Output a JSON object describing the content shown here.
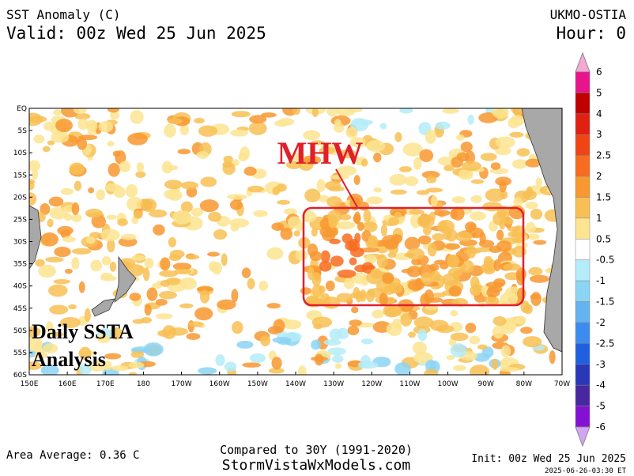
{
  "header": {
    "title": "SST Anomaly (C)",
    "valid": "Valid: 00z Wed 25 Jun 2025",
    "model": "UKMO-OSTIA",
    "hour": "Hour: 0"
  },
  "map": {
    "lat_labels": [
      "EQ",
      "5S",
      "10S",
      "15S",
      "20S",
      "25S",
      "30S",
      "35S",
      "40S",
      "45S",
      "50S",
      "55S",
      "60S"
    ],
    "lon_labels": [
      "150E",
      "160E",
      "170E",
      "180",
      "170W",
      "160W",
      "150W",
      "140W",
      "130W",
      "120W",
      "110W",
      "100W",
      "90W",
      "80W",
      "70W"
    ]
  },
  "annotations": {
    "mhw": "MHW",
    "daily": "Daily SSTA",
    "analysis": "Analysis"
  },
  "colorbar": {
    "labels": [
      "6",
      "5",
      "4",
      "3",
      "2.5",
      "2",
      "1.5",
      "1",
      "0.5",
      "-0.5",
      "-1",
      "-1.5",
      "-2",
      "-2.5",
      "-3",
      "-4",
      "-5",
      "-6"
    ],
    "colors": [
      "#f4a8d4",
      "#e8148c",
      "#c00000",
      "#e02010",
      "#f04414",
      "#f86c20",
      "#f89830",
      "#f8c054",
      "#fce490",
      "#ffffff",
      "#b4ecf8",
      "#8cd4f4",
      "#64b4f0",
      "#3c8cf0",
      "#2060e0",
      "#2838b8",
      "#4828a0",
      "#8410d4",
      "#d4a4f4"
    ]
  },
  "footer": {
    "area_average": "Area Average: 0.36 C",
    "compared": "Compared to 30Y (1991-2020)",
    "site": "StormVistaWxModels.com",
    "init": "Init: 00z Wed 25 Jun 2025",
    "stamp": "2025-06-26-03:30 ET"
  }
}
